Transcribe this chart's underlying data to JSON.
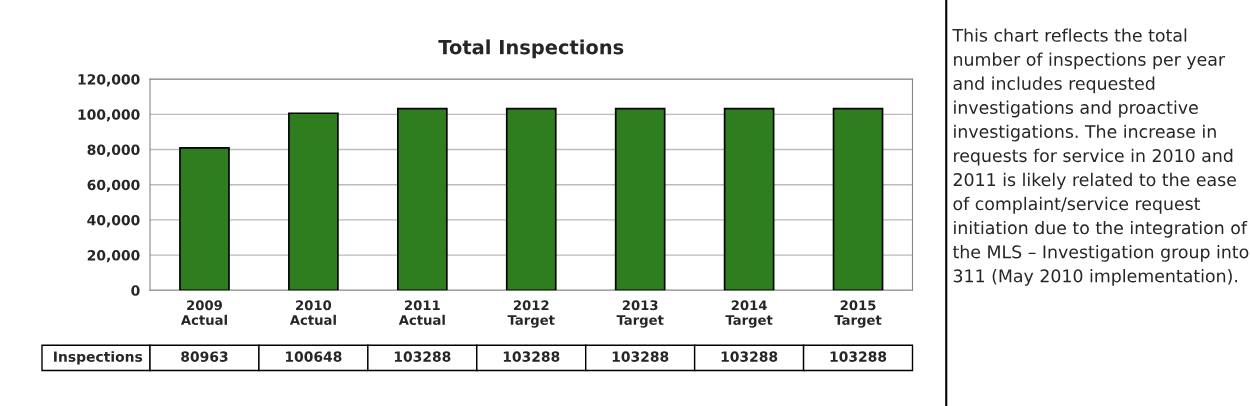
{
  "chart_data": {
    "type": "bar",
    "title": "Total Inspections",
    "categories": [
      "2009\nActual",
      "2010\nActual",
      "2011\nActual",
      "2012\nTarget",
      "2013\nTarget",
      "2014\nTarget",
      "2015\nTarget"
    ],
    "series": [
      {
        "name": "Inspections",
        "color": "#2e7d1e",
        "values": [
          80963,
          100648,
          103288,
          103288,
          103288,
          103288,
          103288
        ]
      }
    ],
    "ylim": [
      0,
      120000
    ],
    "yticks": [
      {
        "value": 0,
        "label": "0"
      },
      {
        "value": 20000,
        "label": "20,000"
      },
      {
        "value": 40000,
        "label": "40,000"
      },
      {
        "value": 60000,
        "label": "60,000"
      },
      {
        "value": 80000,
        "label": "80,000"
      },
      {
        "value": 100000,
        "label": "100,000"
      },
      {
        "value": 120000,
        "label": "120,000"
      }
    ],
    "grid": "y",
    "data_labels": true,
    "annotations": [
      "This chart reflects the total number of inspections per year and includes requested investigations and proactive investigations. The increase in requests for service in 2010 and 2011 is likely related to the ease of complaint/service request initiation due to the integration of the MLS – Investigation group into 311 (May 2010 implementation)."
    ]
  }
}
